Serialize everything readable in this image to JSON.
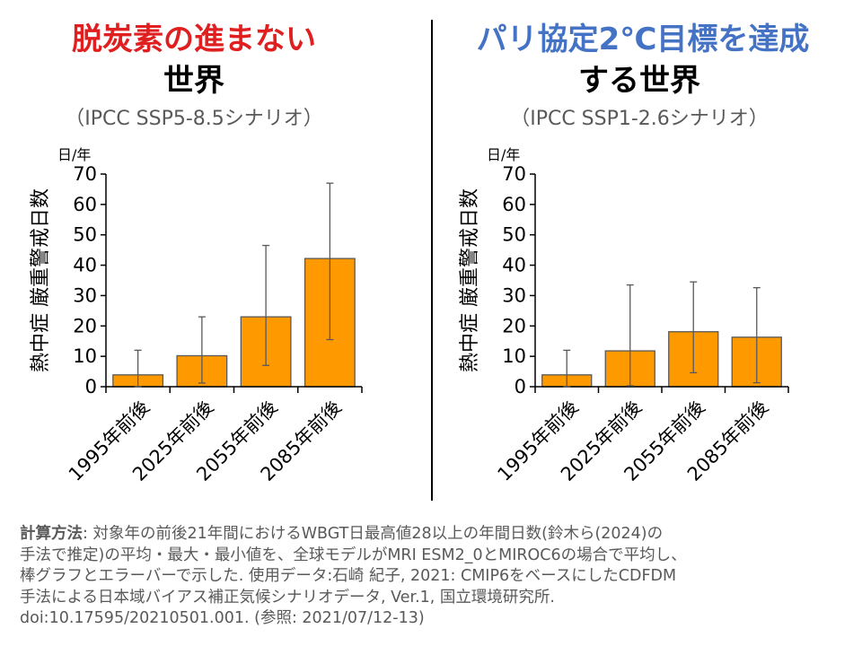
{
  "panels": [
    {
      "title_line1": "脱炭素の進まない",
      "title_line2": "世界",
      "subtitle": "（IPCC SSP5-8.5シナリオ）"
    },
    {
      "title_line1": "パリ協定2℃目標を達成",
      "title_line2": "する世界",
      "subtitle": "（IPCC SSP1-2.6シナリオ）"
    }
  ],
  "chart_data": [
    {
      "type": "bar",
      "title": "",
      "xlabel": "",
      "ylabel": "熱中症 厳重警戒日数",
      "yunit": "日/年",
      "ylim": [
        0,
        70
      ],
      "yticks": [
        0,
        10,
        20,
        30,
        40,
        50,
        60,
        70
      ],
      "grid": false,
      "categories": [
        "1995年前後",
        "2025年前後",
        "2055年前後",
        "2085年前後"
      ],
      "values": [
        3.9,
        10.2,
        23.0,
        42.2
      ],
      "min": [
        0,
        1.2,
        7.0,
        15.5
      ],
      "max": [
        12.0,
        23.0,
        46.5,
        67.0
      ],
      "bar_color": "#ff9900"
    },
    {
      "type": "bar",
      "title": "",
      "xlabel": "",
      "ylabel": "熱中症 厳重警戒日数",
      "yunit": "日/年",
      "ylim": [
        0,
        70
      ],
      "yticks": [
        0,
        10,
        20,
        30,
        40,
        50,
        60,
        70
      ],
      "grid": false,
      "categories": [
        "1995年前後",
        "2025年前後",
        "2055年前後",
        "2085年前後"
      ],
      "values": [
        3.9,
        11.8,
        18.1,
        16.3
      ],
      "min": [
        0,
        0.3,
        4.6,
        1.3
      ],
      "max": [
        12.0,
        33.5,
        34.5,
        32.6
      ],
      "bar_color": "#ff9900"
    }
  ],
  "note": {
    "label": "計算方法",
    "line1": ": 対象年の前後21年間におけるWBGT日最高値28以上の年間日数(鈴木ら(2024)の",
    "line2": "手法で推定)の平均・最大・最小値を、全球モデルがMRI ESM2_0とMIROC6の場合で平均し、",
    "line3": "棒グラフとエラーバーで示した. 使用データ:石崎 紀子, 2021: CMIP6をベースにしたCDFDM",
    "line4": "手法による日本域バイアス補正気候シナリオデータ, Ver.1, 国立環境研究所.",
    "line5": "doi:10.17595/20210501.001. (参照: 2021/07/12-13)"
  }
}
